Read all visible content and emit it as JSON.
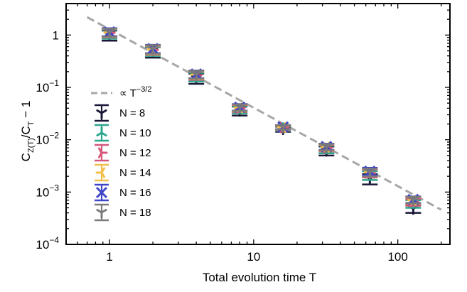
{
  "chart_data": {
    "type": "scatter",
    "xscale": "log",
    "yscale": "log",
    "xlabel": "Total evolution time T",
    "ylabel": {
      "base": "C",
      "sub1": "Z(T)",
      "mid": "/C",
      "sub2": "T",
      "tail": " − 1"
    },
    "xlim": [
      0.5,
      230
    ],
    "ylim": [
      0.0001,
      4
    ],
    "xticks": [
      {
        "value": 1,
        "label": "1"
      },
      {
        "value": 10,
        "label": "10"
      },
      {
        "value": 100,
        "label": "100"
      }
    ],
    "yticks": [
      {
        "value": 1,
        "base": "1",
        "exp": ""
      },
      {
        "value": 0.1,
        "base": "10",
        "exp": "−1"
      },
      {
        "value": 0.01,
        "base": "10",
        "exp": "−2"
      },
      {
        "value": 0.001,
        "base": "10",
        "exp": "−3"
      },
      {
        "value": 0.0001,
        "base": "10",
        "exp": "−4"
      }
    ],
    "x": [
      1,
      2,
      4,
      8,
      16,
      32,
      64,
      128
    ],
    "fit_line": {
      "label_prefix": "∝ T",
      "label_exp": "−3/2",
      "color": "#a6a6a6",
      "slope": -1.5,
      "points": [
        [
          0.7,
          2.2
        ],
        [
          200,
          0.00046
        ]
      ]
    },
    "series": [
      {
        "name": "N = 8",
        "color": "#1a1838",
        "marker": "tri_down",
        "values": [
          1.0,
          0.48,
          0.15,
          0.036,
          0.016,
          0.0062,
          0.0018,
          0.00048
        ],
        "err": [
          0.22,
          0.11,
          0.033,
          0.007,
          0.0018,
          0.0012,
          0.0004,
          8e-05
        ]
      },
      {
        "name": "N = 10",
        "color": "#2ca58d",
        "marker": "tri_up",
        "values": [
          1.05,
          0.5,
          0.16,
          0.038,
          0.0165,
          0.0066,
          0.0021,
          0.0006
        ],
        "err": [
          0.2,
          0.1,
          0.03,
          0.006,
          0.0017,
          0.0011,
          0.0004,
          0.0001
        ]
      },
      {
        "name": "N = 12",
        "color": "#d6577a",
        "marker": "tri_right",
        "values": [
          1.1,
          0.52,
          0.17,
          0.04,
          0.017,
          0.007,
          0.0023,
          0.00065
        ],
        "err": [
          0.2,
          0.1,
          0.03,
          0.006,
          0.0016,
          0.001,
          0.0004,
          0.0001
        ]
      },
      {
        "name": "N = 14",
        "color": "#f2bf4a",
        "marker": "tri_left",
        "values": [
          1.12,
          0.53,
          0.175,
          0.041,
          0.0172,
          0.0072,
          0.0024,
          0.0007
        ],
        "err": [
          0.2,
          0.1,
          0.03,
          0.006,
          0.0016,
          0.001,
          0.0004,
          0.0001
        ]
      },
      {
        "name": "N = 16",
        "color": "#3f46c8",
        "marker": "x",
        "values": [
          1.15,
          0.55,
          0.18,
          0.042,
          0.0175,
          0.0074,
          0.0025,
          0.00072
        ],
        "err": [
          0.2,
          0.1,
          0.03,
          0.006,
          0.0016,
          0.001,
          0.0004,
          0.0001
        ]
      },
      {
        "name": "N = 18",
        "color": "#7a7a7a",
        "marker": "tri_down",
        "values": [
          1.13,
          0.54,
          0.178,
          0.0415,
          0.0173,
          0.0073,
          0.0024,
          0.00071
        ],
        "err": [
          0.2,
          0.1,
          0.03,
          0.006,
          0.0016,
          0.001,
          0.0004,
          0.0001
        ]
      }
    ],
    "grid": false,
    "legend_position": "lower-left"
  }
}
